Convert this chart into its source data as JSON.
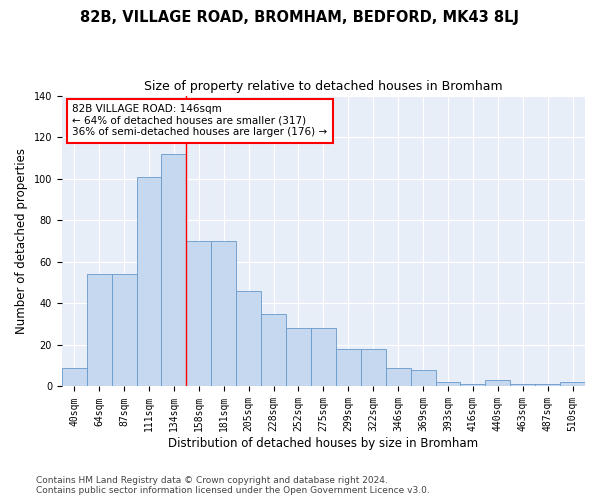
{
  "title": "82B, VILLAGE ROAD, BROMHAM, BEDFORD, MK43 8LJ",
  "subtitle": "Size of property relative to detached houses in Bromham",
  "xlabel": "Distribution of detached houses by size in Bromham",
  "ylabel": "Number of detached properties",
  "bar_labels": [
    "40sqm",
    "64sqm",
    "87sqm",
    "111sqm",
    "134sqm",
    "158sqm",
    "181sqm",
    "205sqm",
    "228sqm",
    "252sqm",
    "275sqm",
    "299sqm",
    "322sqm",
    "346sqm",
    "369sqm",
    "393sqm",
    "416sqm",
    "440sqm",
    "463sqm",
    "487sqm",
    "510sqm"
  ],
  "bar_values": [
    9,
    54,
    54,
    101,
    112,
    70,
    70,
    46,
    35,
    28,
    28,
    18,
    18,
    9,
    8,
    2,
    1,
    3,
    1,
    1,
    2
  ],
  "bar_color": "#c5d8f0",
  "bar_edge_color": "#6699cc",
  "vline_x": 4.5,
  "vline_color": "red",
  "annotation_text": "82B VILLAGE ROAD: 146sqm\n← 64% of detached houses are smaller (317)\n36% of semi-detached houses are larger (176) →",
  "annotation_box_color": "white",
  "annotation_box_edge": "red",
  "ylim": [
    0,
    140
  ],
  "yticks": [
    0,
    20,
    40,
    60,
    80,
    100,
    120,
    140
  ],
  "bg_color": "#e8eef8",
  "footer": "Contains HM Land Registry data © Crown copyright and database right 2024.\nContains public sector information licensed under the Open Government Licence v3.0.",
  "title_fontsize": 10.5,
  "subtitle_fontsize": 9,
  "axis_label_fontsize": 8.5,
  "tick_fontsize": 7,
  "annotation_fontsize": 7.5,
  "footer_fontsize": 6.5
}
